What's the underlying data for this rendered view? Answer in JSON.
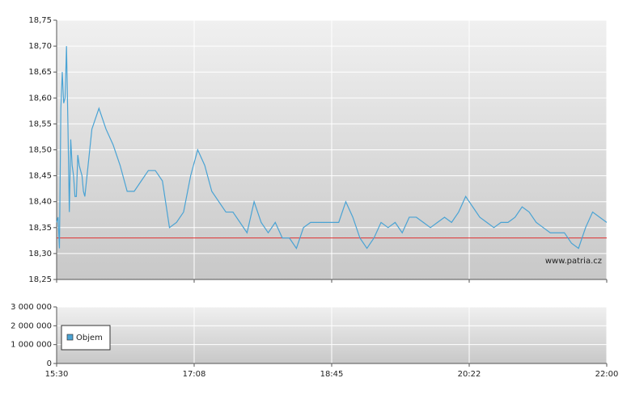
{
  "chart_data": [
    {
      "type": "line",
      "annotation": "www.patria.cz",
      "x": [
        930,
        931,
        932,
        933,
        934,
        935,
        936,
        937,
        938,
        939,
        940,
        941,
        942,
        943,
        944,
        945,
        946,
        947,
        948,
        949,
        950,
        955,
        960,
        965,
        970,
        975,
        980,
        985,
        990,
        995,
        1000,
        1005,
        1010,
        1015,
        1020,
        1025,
        1030,
        1035,
        1040,
        1045,
        1050,
        1055,
        1060,
        1065,
        1070,
        1075,
        1080,
        1085,
        1090,
        1095,
        1100,
        1105,
        1110,
        1115,
        1120,
        1125,
        1130,
        1135,
        1140,
        1145,
        1150,
        1155,
        1160,
        1165,
        1170,
        1175,
        1180,
        1185,
        1190,
        1195,
        1200,
        1205,
        1210,
        1215,
        1220,
        1225,
        1230,
        1235,
        1240,
        1245,
        1250,
        1255,
        1260,
        1265,
        1270,
        1275,
        1280,
        1285,
        1290,
        1295,
        1300,
        1305,
        1310,
        1315,
        1320
      ],
      "series": [
        {
          "color": "#4aa3d4",
          "values": [
            18.36,
            18.37,
            18.31,
            18.58,
            18.65,
            18.59,
            18.6,
            18.7,
            18.55,
            18.38,
            18.52,
            18.47,
            18.45,
            18.41,
            18.41,
            18.49,
            18.47,
            18.46,
            18.45,
            18.42,
            18.41,
            18.54,
            18.58,
            18.54,
            18.51,
            18.47,
            18.42,
            18.42,
            18.44,
            18.46,
            18.46,
            18.44,
            18.35,
            18.36,
            18.38,
            18.45,
            18.5,
            18.47,
            18.42,
            18.4,
            18.38,
            18.38,
            18.36,
            18.34,
            18.4,
            18.36,
            18.34,
            18.36,
            18.33,
            18.33,
            18.31,
            18.35,
            18.36,
            18.36,
            18.36,
            18.36,
            18.36,
            18.4,
            18.37,
            18.33,
            18.31,
            18.33,
            18.36,
            18.35,
            18.36,
            18.34,
            18.37,
            18.37,
            18.36,
            18.35,
            18.36,
            18.37,
            18.36,
            18.38,
            18.41,
            18.39,
            18.37,
            18.36,
            18.35,
            18.36,
            18.36,
            18.37,
            18.39,
            18.38,
            18.36,
            18.35,
            18.34,
            18.34,
            18.34,
            18.32,
            18.31,
            18.35,
            18.38,
            18.37,
            18.36
          ]
        }
      ],
      "reference": {
        "value": 18.33,
        "color": "#e03030"
      },
      "xlim": [
        930,
        1320
      ],
      "ylim": [
        18.25,
        18.75
      ],
      "yticks": [
        {
          "value": 18.25,
          "label": "18,25"
        },
        {
          "value": 18.3,
          "label": "18,30"
        },
        {
          "value": 18.35,
          "label": "18,35"
        },
        {
          "value": 18.4,
          "label": "18,40"
        },
        {
          "value": 18.45,
          "label": "18,45"
        },
        {
          "value": 18.5,
          "label": "18,50"
        },
        {
          "value": 18.55,
          "label": "18,55"
        },
        {
          "value": 18.6,
          "label": "18,60"
        },
        {
          "value": 18.65,
          "label": "18,65"
        },
        {
          "value": 18.7,
          "label": "18,70"
        },
        {
          "value": 18.75,
          "label": "18,75"
        }
      ],
      "grid": true
    },
    {
      "type": "bar",
      "series": [
        {
          "name": "Objem",
          "color": "#4aa3d4"
        }
      ],
      "xlim": [
        930,
        1320
      ],
      "xticks": [
        {
          "value": 930,
          "label": "15:30"
        },
        {
          "value": 1027.5,
          "label": "17:08"
        },
        {
          "value": 1125,
          "label": "18:45"
        },
        {
          "value": 1222.5,
          "label": "20:22"
        },
        {
          "value": 1320,
          "label": "22:00"
        }
      ],
      "ylim": [
        0,
        3000000
      ],
      "yticks": [
        {
          "value": 0,
          "label": "0"
        },
        {
          "value": 1000000,
          "label": "1 000 000"
        },
        {
          "value": 2000000,
          "label": "2 000 000"
        },
        {
          "value": 3000000,
          "label": "3 000 000"
        }
      ],
      "grid": true,
      "legend": "bottom-left"
    }
  ]
}
